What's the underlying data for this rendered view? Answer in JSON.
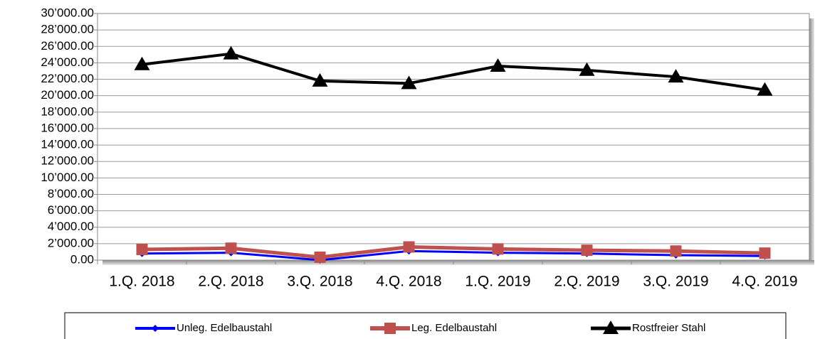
{
  "chart_data": {
    "type": "line",
    "categories": [
      "1.Q. 2018",
      "2.Q. 2018",
      "3.Q. 2018",
      "4.Q. 2018",
      "1.Q. 2019",
      "2.Q. 2019",
      "3.Q. 2019",
      "4.Q. 2019"
    ],
    "series": [
      {
        "name": "Unleg. Edelbaustahl",
        "color": "#0000ff",
        "values": [
          800,
          900,
          0,
          1100,
          900,
          800,
          600,
          500
        ]
      },
      {
        "name": "Leg. Edelbaustahl",
        "color": "#c0504d",
        "values": [
          1300,
          1450,
          350,
          1600,
          1350,
          1200,
          1100,
          850
        ]
      },
      {
        "name": "Rostfreier Stahl",
        "color": "#000000",
        "values": [
          23800,
          25100,
          21800,
          21500,
          23600,
          23100,
          22300,
          20700
        ]
      }
    ],
    "ylim": [
      0,
      30000
    ],
    "yticks": [
      {
        "value": 0,
        "label": "0.00"
      },
      {
        "value": 2000,
        "label": "2’000.00"
      },
      {
        "value": 4000,
        "label": "4’000.00"
      },
      {
        "value": 6000,
        "label": "6’000.00"
      },
      {
        "value": 8000,
        "label": "8’000.00"
      },
      {
        "value": 10000,
        "label": "10’000.00"
      },
      {
        "value": 12000,
        "label": "12’000.00"
      },
      {
        "value": 14000,
        "label": "14’000.00"
      },
      {
        "value": 16000,
        "label": "16’000.00"
      },
      {
        "value": 18000,
        "label": "18’000.00"
      },
      {
        "value": 20000,
        "label": "20’000.00"
      },
      {
        "value": 22000,
        "label": "22’000.00"
      },
      {
        "value": 24000,
        "label": "24’000.00"
      },
      {
        "value": 26000,
        "label": "26’000.00"
      },
      {
        "value": 28000,
        "label": "28’000.00"
      },
      {
        "value": 30000,
        "label": "30’000.00"
      }
    ],
    "grid": true,
    "legend": "bottom"
  }
}
